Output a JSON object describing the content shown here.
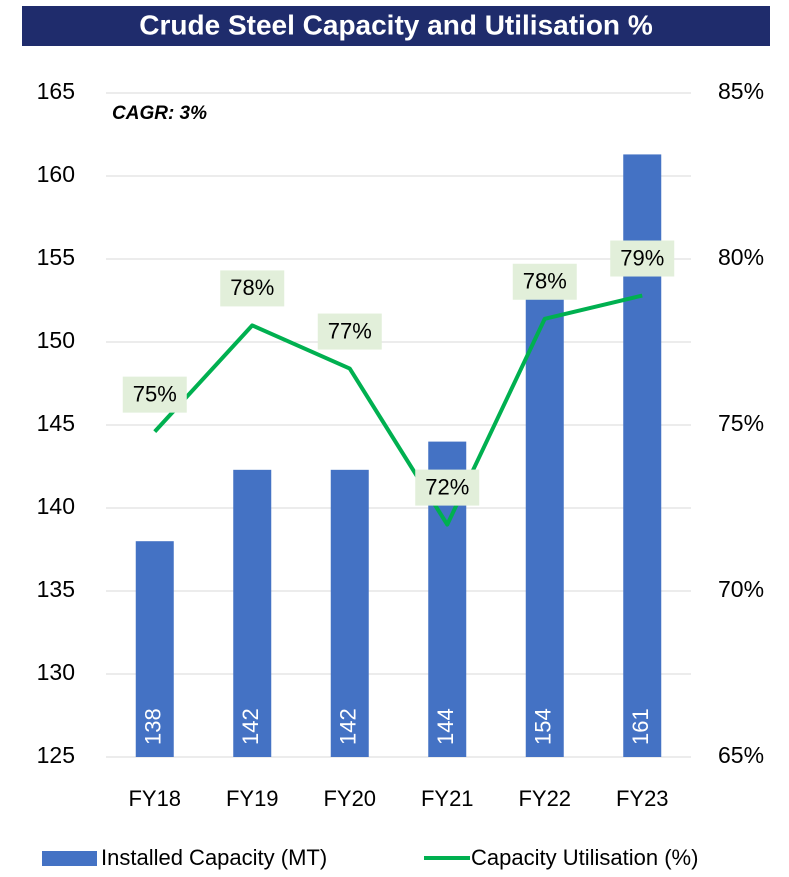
{
  "chart_data": {
    "type": "bar_line",
    "title": "Crude Steel Capacity and Utilisation %",
    "annotation": "CAGR: 3%",
    "categories": [
      "FY18",
      "FY19",
      "FY20",
      "FY21",
      "FY22",
      "FY23"
    ],
    "series": [
      {
        "name": "Installed Capacity (MT)",
        "type": "bar",
        "color": "#4472c4",
        "values": [
          138,
          142.3,
          142.3,
          144,
          153.7,
          161.3
        ],
        "value_labels": [
          "138",
          "142",
          "142",
          "144",
          "154",
          "161"
        ]
      },
      {
        "name": "Capacity Utilisation (%)",
        "type": "line",
        "axis": "y2",
        "color": "#00b050",
        "values": [
          74.8,
          78,
          76.7,
          72,
          78.2,
          78.9
        ],
        "value_labels": [
          "75%",
          "78%",
          "77%",
          "72%",
          "78%",
          "79%"
        ]
      }
    ],
    "ylim": [
      125,
      165
    ],
    "yticks": [
      125,
      130,
      135,
      140,
      145,
      150,
      155,
      160,
      165
    ],
    "y2lim": [
      65,
      85
    ],
    "y2ticks": [
      {
        "value": 65,
        "label": "65%"
      },
      {
        "value": 70,
        "label": "70%"
      },
      {
        "value": 75,
        "label": "75%"
      },
      {
        "value": 80,
        "label": "80%"
      },
      {
        "value": 85,
        "label": "85%"
      }
    ],
    "grid": true,
    "legend": "bottom"
  }
}
